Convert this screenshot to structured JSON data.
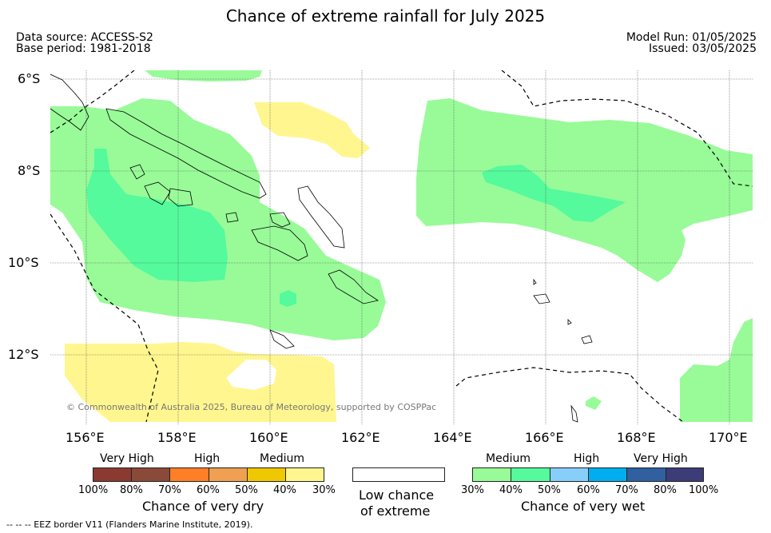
{
  "title": "Chance of extreme rainfall for July 2025",
  "data_source": "Data source: ACCESS-S2",
  "base_period": "Base period: 1981-2018",
  "model_run": "Model Run: 01/05/2025",
  "issued": "Issued: 03/05/2025",
  "copyright": "© Commonwealth of Australia 2025, Bureau of Meteorology, supported by COSPPac",
  "lat_labels": [
    "6°S",
    "8°S",
    "10°S",
    "12°S"
  ],
  "lon_labels": [
    "156°E",
    "158°E",
    "160°E",
    "162°E",
    "164°E",
    "166°E",
    "168°E",
    "170°E"
  ],
  "colors": {
    "dry_100_80": "#8b3a32",
    "dry_80_70": "#8a4a3a",
    "dry_70_60": "#ff7f27",
    "dry_60_50": "#efa050",
    "dry_50_40": "#f0c800",
    "dry_40_30": "#fff68f",
    "low_chance": "#ffffff",
    "wet_30_40": "#98fb98",
    "wet_40_50": "#54fa9c",
    "wet_50_60": "#87cefa",
    "wet_60_70": "#00aeef",
    "wet_70_80": "#3060a0",
    "wet_80_100": "#3c3c78"
  },
  "legend": {
    "dry": {
      "levels": [
        "Very High",
        "High",
        "Medium"
      ],
      "ticks": [
        "100%",
        "80%",
        "70%",
        "60%",
        "50%",
        "40%",
        "30%"
      ],
      "title": "Chance of very dry"
    },
    "low": {
      "title_line1": "Low chance",
      "title_line2": "of extreme"
    },
    "wet": {
      "levels": [
        "Medium",
        "High",
        "Very High"
      ],
      "ticks": [
        "30%",
        "40%",
        "50%",
        "60%",
        "70%",
        "80%",
        "100%"
      ],
      "title": "Chance of very wet"
    }
  },
  "footer": "-- -- -- EEZ border V11 (Flanders Marine Institute, 2019)."
}
